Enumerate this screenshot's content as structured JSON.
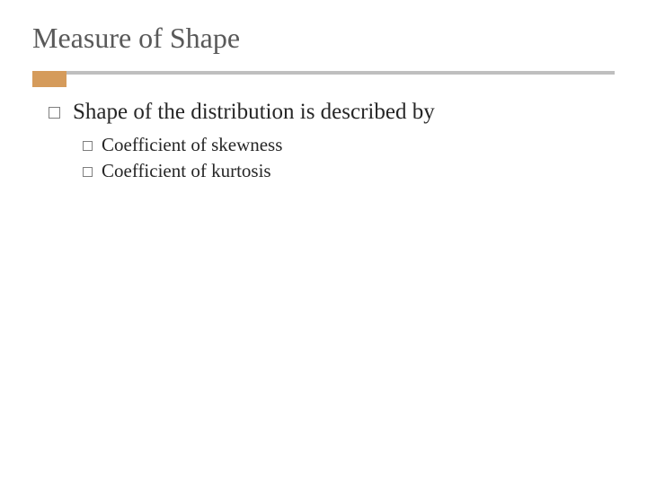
{
  "title": "Measure of Shape",
  "rule": {
    "full_color": "#bfbfbf",
    "accent_color": "#d59b5b"
  },
  "main_bullet": {
    "text": "Shape of the distribution is described by"
  },
  "sub_bullets": [
    {
      "text": "Coefficient of skewness"
    },
    {
      "text": "Coefficient of kurtosis"
    }
  ],
  "colors": {
    "title": "#595959",
    "body": "#262626",
    "bullet_border": "#7f7f7f",
    "background": "#ffffff"
  },
  "fonts": {
    "family": "Georgia",
    "title_size_pt": 24,
    "body_size_pt": 19,
    "sub_size_pt": 16
  }
}
